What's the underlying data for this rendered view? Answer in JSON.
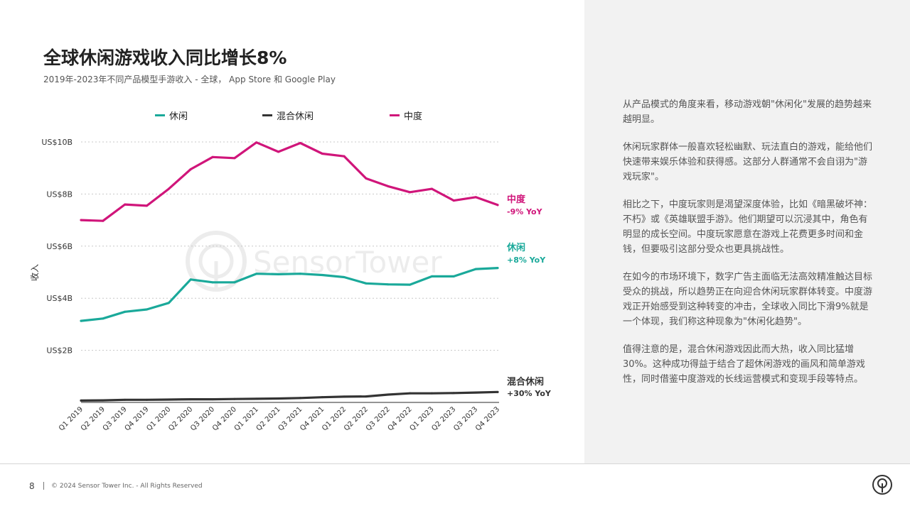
{
  "title": "全球休闲游戏收入同比增长8%",
  "subtitle": "2019年-2023年不同产品模型手游收入 - 全球， App Store 和 Google Play",
  "legend": [
    {
      "label": "休闲",
      "color": "#1aa99a"
    },
    {
      "label": "混合休闲",
      "color": "#333333"
    },
    {
      "label": "中度",
      "color": "#d0157a"
    }
  ],
  "chart_data": {
    "type": "line",
    "title": "全球休闲游戏收入同比增长8%",
    "xlabel": "",
    "ylabel": "收入",
    "ylim": [
      0,
      10
    ],
    "y_ticks": [
      {
        "value": 2,
        "label": "US$2B"
      },
      {
        "value": 4,
        "label": "US$4B"
      },
      {
        "value": 6,
        "label": "US$6B"
      },
      {
        "value": 8,
        "label": "US$8B"
      },
      {
        "value": 10,
        "label": "US$10B"
      }
    ],
    "categories": [
      "Q1 2019",
      "Q2 2019",
      "Q3 2019",
      "Q4 2019",
      "Q1 2020",
      "Q2 2020",
      "Q3 2020",
      "Q4 2020",
      "Q1 2021",
      "Q2 2021",
      "Q3 2021",
      "Q4 2021",
      "Q1 2022",
      "Q2 2022",
      "Q3 2022",
      "Q4 2022",
      "Q1 2023",
      "Q2 2023",
      "Q3 2023",
      "Q4 2023"
    ],
    "series": [
      {
        "name": "中度",
        "color": "#d0157a",
        "end_label": "中度",
        "end_yoy": "-9% YoY",
        "values": [
          7.0,
          6.97,
          7.6,
          7.55,
          8.2,
          8.95,
          9.42,
          9.38,
          9.98,
          9.62,
          9.96,
          9.55,
          9.45,
          8.6,
          8.3,
          8.07,
          8.2,
          7.75,
          7.88,
          7.58
        ]
      },
      {
        "name": "休闲",
        "color": "#1aa99a",
        "end_label": "休闲",
        "end_yoy": "+8% YoY",
        "values": [
          3.13,
          3.22,
          3.48,
          3.57,
          3.82,
          4.72,
          4.61,
          4.61,
          4.94,
          4.92,
          4.94,
          4.89,
          4.81,
          4.57,
          4.53,
          4.52,
          4.84,
          4.84,
          5.12,
          5.16
        ]
      },
      {
        "name": "混合休闲",
        "color": "#333333",
        "end_label": "混合休闲",
        "end_yoy": "+30% YoY",
        "values": [
          0.07,
          0.08,
          0.1,
          0.1,
          0.11,
          0.12,
          0.12,
          0.13,
          0.14,
          0.15,
          0.17,
          0.2,
          0.22,
          0.23,
          0.3,
          0.35,
          0.35,
          0.36,
          0.38,
          0.4
        ]
      }
    ]
  },
  "watermark": "SensorTower",
  "body_paragraphs": [
    "从产品模式的角度来看，移动游戏朝\"休闲化\"发展的趋势越来越明显。",
    "休闲玩家群体一般喜欢轻松幽默、玩法直白的游戏，能给他们快速带来娱乐体验和获得感。这部分人群通常不会自诩为\"游戏玩家\"。",
    "相比之下，中度玩家则是渴望深度体验，比如《暗黑破坏神：不朽》或《英雄联盟手游》。他们期望可以沉浸其中，角色有明显的成长空间。中度玩家愿意在游戏上花费更多时间和金钱，但要吸引这部分受众也更具挑战性。",
    "在如今的市场环境下，数字广告主面临无法高效精准触达目标受众的挑战，所以趋势正在向迎合休闲玩家群体转变。中度游戏正开始感受到这种转变的冲击，全球收入同比下滑9%就是一个体现，我们称这种现象为\"休闲化趋势\"。",
    "值得注意的是，混合休闲游戏因此而大热，收入同比猛增30%。这种成功得益于结合了超休闲游戏的画风和简单游戏性，同时借鉴中度游戏的长线运营模式和变现手段等特点。"
  ],
  "footer": {
    "page_number": "8",
    "copyright": "© 2024 Sensor Tower Inc. - All Rights Reserved"
  }
}
